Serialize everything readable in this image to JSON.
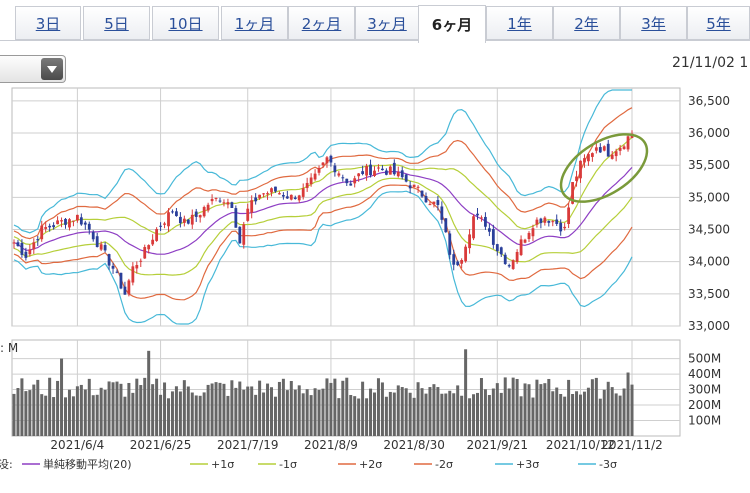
{
  "tabs": [
    {
      "label": "3日",
      "active": false
    },
    {
      "label": "5日",
      "active": false
    },
    {
      "label": "10日",
      "active": false
    },
    {
      "label": "1ヶ月",
      "active": false
    },
    {
      "label": "2ヶ月",
      "active": false
    },
    {
      "label": "3ヶ月",
      "active": false
    },
    {
      "label": "6ヶ月",
      "active": true
    },
    {
      "label": "1年",
      "active": false
    },
    {
      "label": "2年",
      "active": false
    },
    {
      "label": "3年",
      "active": false
    },
    {
      "label": "5年",
      "active": false
    }
  ],
  "header": {
    "datetime": "21/11/02 1"
  },
  "volume_label_fragment": ": M",
  "legend_prefix": "没:",
  "colors": {
    "up": "#d93a3a",
    "down": "#2a3f9a",
    "sma": "#8e3fc4",
    "sigma1": "#b6cf3a",
    "sigma2": "#e06a40",
    "sigma3": "#48b9d8",
    "volume": "#666666",
    "grid": "#cfcfcf",
    "highlight": "#7a9a3a"
  },
  "chart_data": [
    {
      "type": "candlestick",
      "title": "",
      "x_ticks": [
        "2021/6/4",
        "2021/6/25",
        "2021/7/19",
        "2021/8/9",
        "2021/8/30",
        "2021/9/21",
        "2021/10/12",
        "2021/11/2"
      ],
      "y_ticks": [
        "33,000",
        "33,500",
        "34,000",
        "34,500",
        "35,000",
        "35,500",
        "36,000",
        "36,500"
      ],
      "ylim": [
        33000,
        36700
      ],
      "grid": true,
      "waypoints_close": [
        [
          0,
          34300
        ],
        [
          3,
          34100
        ],
        [
          7,
          34500
        ],
        [
          12,
          34620
        ],
        [
          16,
          34700
        ],
        [
          19,
          34500
        ],
        [
          22,
          34200
        ],
        [
          25,
          33900
        ],
        [
          28,
          33500
        ],
        [
          30,
          33900
        ],
        [
          33,
          34150
        ],
        [
          36,
          34500
        ],
        [
          40,
          34800
        ],
        [
          43,
          34600
        ],
        [
          46,
          34700
        ],
        [
          49,
          34900
        ],
        [
          52,
          35000
        ],
        [
          55,
          34900
        ],
        [
          57,
          34300
        ],
        [
          59,
          34800
        ],
        [
          62,
          35050
        ],
        [
          66,
          35100
        ],
        [
          70,
          35000
        ],
        [
          73,
          35100
        ],
        [
          76,
          35300
        ],
        [
          79,
          35600
        ],
        [
          82,
          35400
        ],
        [
          85,
          35200
        ],
        [
          88,
          35400
        ],
        [
          92,
          35450
        ],
        [
          95,
          35400
        ],
        [
          98,
          35300
        ],
        [
          101,
          35150
        ],
        [
          104,
          35000
        ],
        [
          107,
          34850
        ],
        [
          109,
          34400
        ],
        [
          111,
          33900
        ],
        [
          113,
          34100
        ],
        [
          116,
          34700
        ],
        [
          119,
          34600
        ],
        [
          122,
          34200
        ],
        [
          125,
          33950
        ],
        [
          128,
          34300
        ],
        [
          131,
          34600
        ],
        [
          134,
          34700
        ],
        [
          137,
          34600
        ],
        [
          139,
          34500
        ],
        [
          141,
          35200
        ],
        [
          143,
          35500
        ],
        [
          147,
          35800
        ],
        [
          150,
          35700
        ],
        [
          153,
          35800
        ],
        [
          156,
          36000
        ]
      ],
      "series": [
        {
          "name": "単純移動平均(20)"
        },
        {
          "name": "+1σ"
        },
        {
          "name": "-1σ"
        },
        {
          "name": "+2σ"
        },
        {
          "name": "-2σ"
        },
        {
          "name": "+3σ"
        },
        {
          "name": "-3σ"
        }
      ],
      "annotation": "green ellipse around the latest rally"
    },
    {
      "type": "bar",
      "title": "",
      "y_ticks": [
        "100M",
        "200M",
        "300M",
        "400M",
        "500M"
      ],
      "ylim": [
        0,
        620
      ],
      "unit": "M",
      "spikes": [
        [
          12,
          500
        ],
        [
          34,
          550
        ],
        [
          114,
          560
        ],
        [
          1,
          310
        ],
        [
          60,
          320
        ],
        [
          150,
          350
        ],
        [
          155,
          410
        ]
      ],
      "base_range": [
        240,
        380
      ]
    }
  ]
}
